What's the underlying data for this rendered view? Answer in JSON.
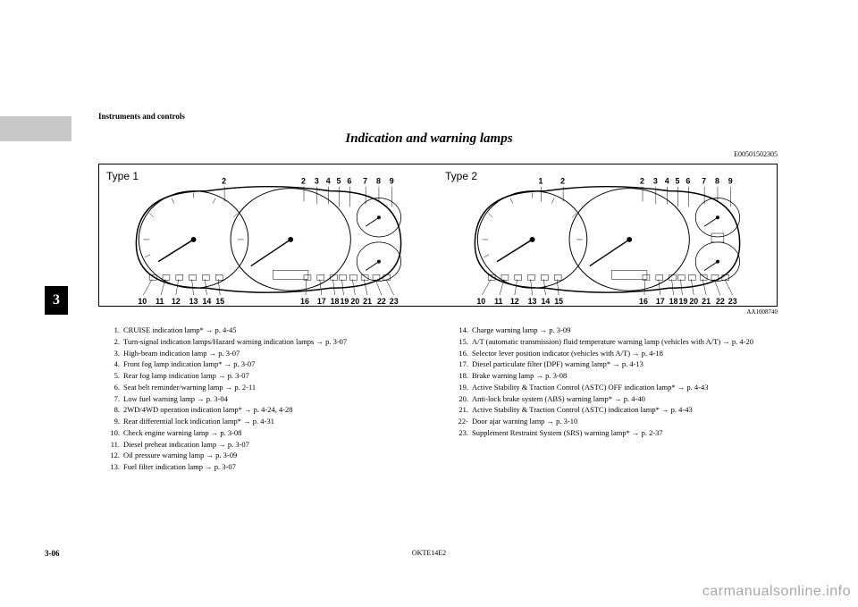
{
  "header_section": "Instruments and controls",
  "title": "Indication and warning lamps",
  "doc_code": "E00501502305",
  "img_code": "AA1008740",
  "type1_label": "Type 1",
  "type2_label": "Type 2",
  "chapter_number": "3",
  "page_number": "3-06",
  "footer_code": "OKTE14E2",
  "watermark": "carmanualsonline.info",
  "callouts_top_t1": [
    "2",
    "2",
    "3",
    "4",
    "5",
    "6",
    "7",
    "8",
    "9"
  ],
  "callouts_bot_t1": [
    "10",
    "11",
    "12",
    "13",
    "14",
    "15",
    "16",
    "17",
    "18",
    "19",
    "20",
    "21",
    "22",
    "23"
  ],
  "callouts_top_t2": [
    "1",
    "2",
    "2",
    "3",
    "4",
    "5",
    "6",
    "7",
    "8",
    "9"
  ],
  "callouts_bot_t2": [
    "10",
    "11",
    "12",
    "13",
    "14",
    "15",
    "16",
    "17",
    "18",
    "19",
    "20",
    "21",
    "22",
    "23"
  ],
  "list_left": [
    {
      "n": "1.",
      "t": "CRUISE indication lamp* → p. 4-45"
    },
    {
      "n": "2.",
      "t": "Turn-signal indication lamps/Hazard warning indication lamps → p. 3-07"
    },
    {
      "n": "3.",
      "t": "High-beam indication lamp → p. 3-07"
    },
    {
      "n": "4.",
      "t": "Front fog lamp indication lamp*  → p. 3-07"
    },
    {
      "n": "5.",
      "t": "Rear fog lamp indication lamp → p. 3-07"
    },
    {
      "n": "6.",
      "t": "Seat belt reminder/warning lamp → p. 2-11"
    },
    {
      "n": "7.",
      "t": "Low fuel warning lamp → p. 3-04"
    },
    {
      "n": "8.",
      "t": "2WD/4WD operation indication lamp* → p. 4-24, 4-28"
    },
    {
      "n": "9.",
      "t": "Rear differential lock indication lamp* → p. 4-31"
    },
    {
      "n": "10.",
      "t": "Check engine warning lamp → p. 3-08"
    },
    {
      "n": "11.",
      "t": "Diesel preheat indication lamp → p. 3-07"
    },
    {
      "n": "12.",
      "t": "Oil pressure warning lamp → p. 3-09"
    },
    {
      "n": "13.",
      "t": "Fuel filter indication lamp → p. 3-07"
    }
  ],
  "list_right": [
    {
      "n": "14.",
      "t": "Charge warning lamp → p. 3-09"
    },
    {
      "n": "15.",
      "t": "A/T (automatic transmission) fluid temperature warning lamp (vehicles with A/T) → p. 4-20"
    },
    {
      "n": "16.",
      "t": "Selector lever position indicator (vehicles with A/T) → p. 4-18"
    },
    {
      "n": "17.",
      "t": "Diesel particulate filter (DPF) warning lamp*  → p. 4-13"
    },
    {
      "n": "18.",
      "t": "Brake warning lamp → p. 3-08"
    },
    {
      "n": "19.",
      "t": "Active Stability & Traction Control (ASTC) OFF indication lamp* → p. 4-43"
    },
    {
      "n": "20.",
      "t": "Anti-lock brake system (ABS) warning lamp* → p. 4-40"
    },
    {
      "n": "21.",
      "t": "Active Stability & Traction Control (ASTC) indication lamp* → p. 4-43"
    },
    {
      "n": "22-",
      "t": "Door ajar warning lamp → p. 3-10"
    },
    {
      "n": "23.",
      "t": "Supplement Restraint System (SRS) warning lamp* → p. 2-37"
    }
  ],
  "diagram": {
    "stroke": "#000",
    "fill": "#fff",
    "line_width": 1
  }
}
